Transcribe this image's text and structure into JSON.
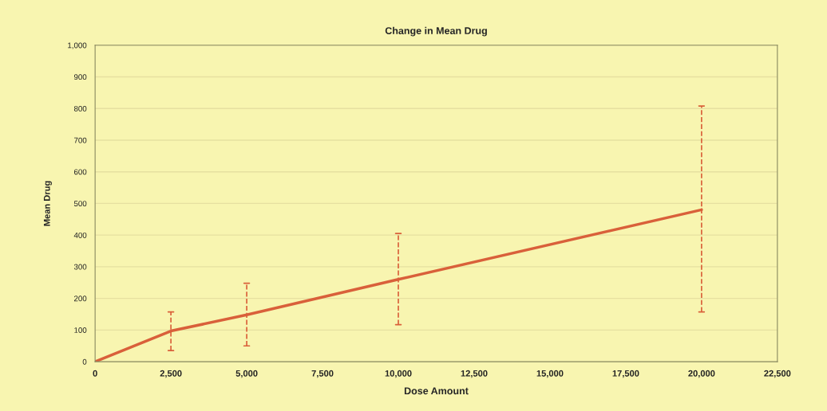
{
  "chart_data": {
    "type": "line",
    "title": "Change in Mean Drug",
    "xlabel": "Dose Amount",
    "ylabel": "Mean Drug",
    "x": [
      0,
      2500,
      5000,
      10000,
      20000
    ],
    "series": [
      {
        "color": "#d9603a",
        "values": [
          0,
          97,
          148,
          260,
          480
        ],
        "errors": [
          null,
          [
            35,
            157
          ],
          [
            50,
            248
          ],
          [
            117,
            405
          ],
          [
            157,
            808
          ]
        ]
      }
    ],
    "xlim": [
      0,
      22500
    ],
    "xticks": [
      {
        "value": 0,
        "label": "0"
      },
      {
        "value": 2500,
        "label": "2,500"
      },
      {
        "value": 5000,
        "label": "5,000"
      },
      {
        "value": 7500,
        "label": "7,500"
      },
      {
        "value": 10000,
        "label": "10,000"
      },
      {
        "value": 12500,
        "label": "12,500"
      },
      {
        "value": 15000,
        "label": "15,000"
      },
      {
        "value": 17500,
        "label": "17,500"
      },
      {
        "value": 20000,
        "label": "20,000"
      },
      {
        "value": 22500,
        "label": "22,500"
      }
    ],
    "ylim": [
      0,
      1000
    ],
    "yticks": [
      0,
      100,
      200,
      300,
      400,
      500,
      600,
      700,
      800,
      900,
      {
        "value": 1000,
        "label": "1,000"
      }
    ],
    "grid": "y",
    "line_style": "solid",
    "marker": "none"
  }
}
